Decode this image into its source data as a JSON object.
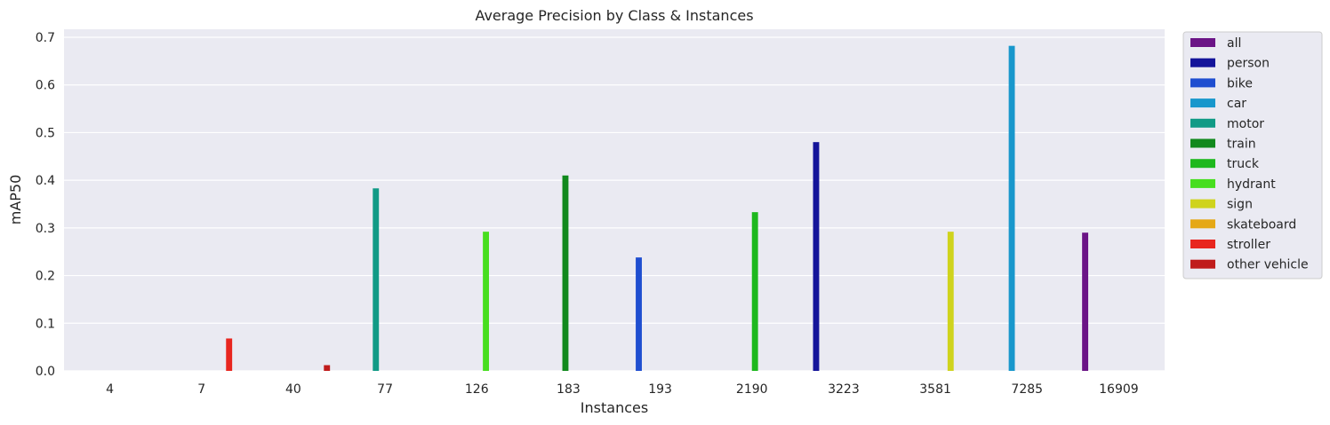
{
  "chart_data": {
    "type": "bar",
    "title": "Average Precision by Class & Instances",
    "xlabel": "Instances",
    "ylabel": "mAP50",
    "ylim": [
      0,
      0.72
    ],
    "yticks": [
      "0.0",
      "0.1",
      "0.2",
      "0.3",
      "0.4",
      "0.5",
      "0.6",
      "0.7"
    ],
    "categories": [
      "4",
      "7",
      "40",
      "77",
      "126",
      "183",
      "193",
      "2190",
      "3223",
      "3581",
      "7285",
      "16909"
    ],
    "grid": true,
    "legend_position": "right, outside plot",
    "series": [
      {
        "name": "all",
        "color": "#6b1486",
        "values": [
          null,
          null,
          null,
          null,
          null,
          null,
          null,
          null,
          null,
          null,
          null,
          0.29
        ]
      },
      {
        "name": "person",
        "color": "#14149a",
        "values": [
          null,
          null,
          null,
          null,
          null,
          null,
          null,
          null,
          0.48,
          null,
          null,
          null
        ]
      },
      {
        "name": "bike",
        "color": "#1f4ed0",
        "values": [
          null,
          null,
          null,
          null,
          null,
          null,
          0.238,
          null,
          null,
          null,
          null,
          null
        ]
      },
      {
        "name": "car",
        "color": "#1897cc",
        "values": [
          null,
          null,
          null,
          null,
          null,
          null,
          null,
          null,
          null,
          null,
          0.682,
          null
        ]
      },
      {
        "name": "motor",
        "color": "#119a86",
        "values": [
          null,
          null,
          null,
          0.383,
          null,
          null,
          null,
          null,
          null,
          null,
          null,
          null
        ]
      },
      {
        "name": "train",
        "color": "#11891d",
        "values": [
          null,
          null,
          null,
          null,
          null,
          0.41,
          null,
          null,
          null,
          null,
          null,
          null
        ]
      },
      {
        "name": "truck",
        "color": "#1eb81e",
        "values": [
          null,
          null,
          null,
          null,
          null,
          null,
          null,
          0.333,
          null,
          null,
          null,
          null
        ]
      },
      {
        "name": "hydrant",
        "color": "#47de1f",
        "values": [
          null,
          null,
          null,
          null,
          0.292,
          null,
          null,
          null,
          null,
          null,
          null,
          null
        ]
      },
      {
        "name": "sign",
        "color": "#cfd31d",
        "values": [
          null,
          null,
          null,
          null,
          null,
          null,
          null,
          null,
          null,
          0.292,
          null,
          null
        ]
      },
      {
        "name": "skateboard",
        "color": "#e5a816",
        "values": [
          null,
          null,
          null,
          null,
          null,
          null,
          null,
          null,
          null,
          null,
          null,
          null
        ]
      },
      {
        "name": "stroller",
        "color": "#e8261f",
        "values": [
          null,
          0.068,
          null,
          null,
          null,
          null,
          null,
          null,
          null,
          null,
          null,
          null
        ]
      },
      {
        "name": "other vehicle",
        "color": "#c01c1c",
        "values": [
          null,
          null,
          0.012,
          null,
          null,
          null,
          null,
          null,
          null,
          null,
          null,
          null
        ]
      }
    ]
  }
}
